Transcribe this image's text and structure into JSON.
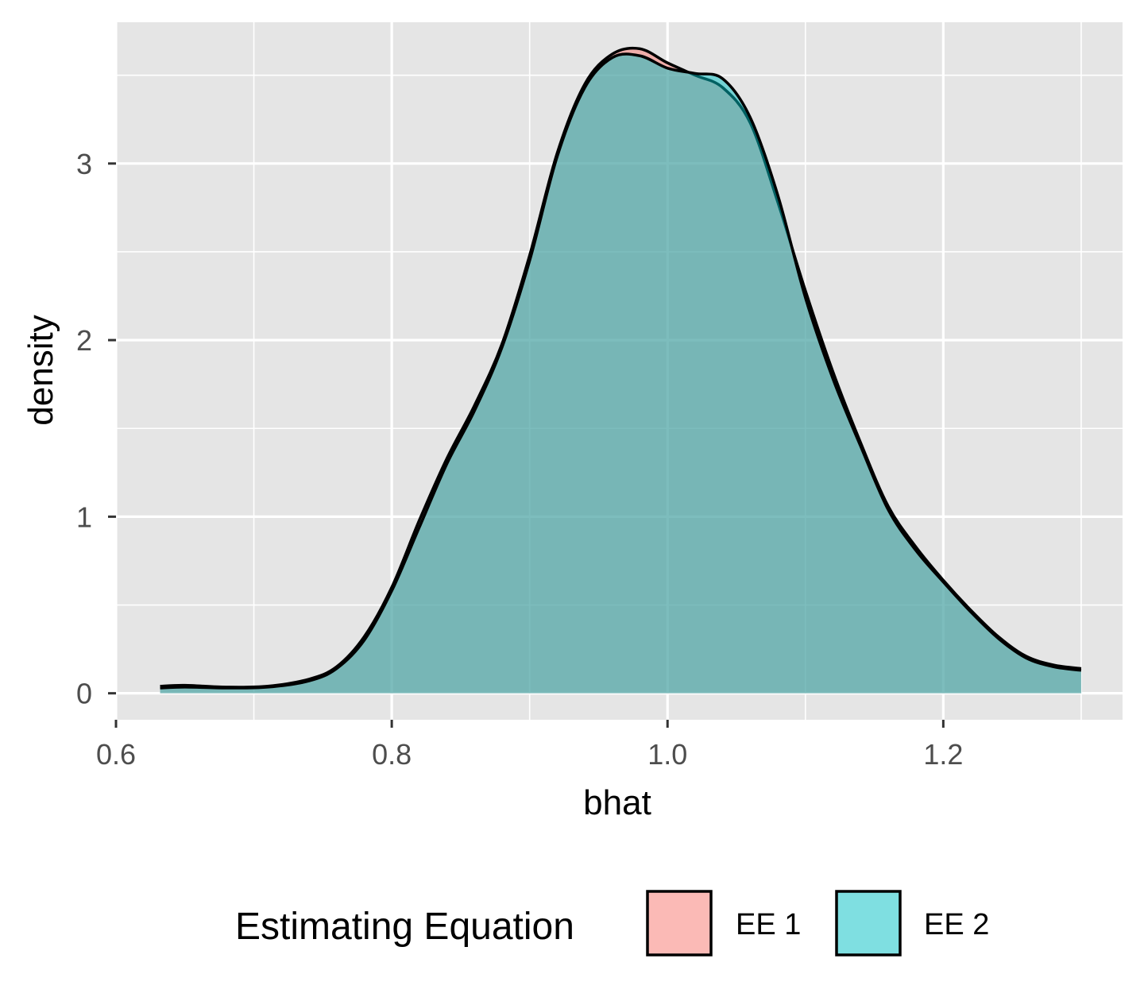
{
  "chart_data": {
    "type": "area",
    "subtype": "density",
    "title": "",
    "xlabel": "bhat",
    "ylabel": "density",
    "xlim": [
      0.6,
      1.33
    ],
    "ylim": [
      -0.15,
      3.8
    ],
    "x_ticks": [
      0.6,
      0.8,
      1.0,
      1.2
    ],
    "x_tick_labels": [
      "0.6",
      "0.8",
      "1.0",
      "1.2"
    ],
    "y_ticks": [
      0,
      1,
      2,
      3
    ],
    "y_tick_labels": [
      "0",
      "1",
      "2",
      "3"
    ],
    "grid": true,
    "legend": {
      "title": "Estimating Equation",
      "position": "bottom"
    },
    "series": [
      {
        "name": "EE 1",
        "color": "#F8766D",
        "points": [
          [
            0.632,
            0.04
          ],
          [
            0.65,
            0.045
          ],
          [
            0.68,
            0.035
          ],
          [
            0.71,
            0.04
          ],
          [
            0.74,
            0.08
          ],
          [
            0.76,
            0.15
          ],
          [
            0.78,
            0.32
          ],
          [
            0.8,
            0.6
          ],
          [
            0.82,
            0.98
          ],
          [
            0.84,
            1.33
          ],
          [
            0.86,
            1.63
          ],
          [
            0.88,
            1.98
          ],
          [
            0.9,
            2.48
          ],
          [
            0.92,
            3.06
          ],
          [
            0.94,
            3.45
          ],
          [
            0.96,
            3.62
          ],
          [
            0.98,
            3.65
          ],
          [
            1.0,
            3.57
          ],
          [
            1.02,
            3.5
          ],
          [
            1.04,
            3.43
          ],
          [
            1.06,
            3.23
          ],
          [
            1.08,
            2.78
          ],
          [
            1.1,
            2.28
          ],
          [
            1.12,
            1.82
          ],
          [
            1.14,
            1.42
          ],
          [
            1.16,
            1.06
          ],
          [
            1.18,
            0.83
          ],
          [
            1.2,
            0.64
          ],
          [
            1.22,
            0.47
          ],
          [
            1.24,
            0.32
          ],
          [
            1.26,
            0.21
          ],
          [
            1.28,
            0.16
          ],
          [
            1.3,
            0.14
          ]
        ]
      },
      {
        "name": "EE 2",
        "color": "#00BFC4",
        "points": [
          [
            0.632,
            0.03
          ],
          [
            0.65,
            0.035
          ],
          [
            0.68,
            0.03
          ],
          [
            0.71,
            0.035
          ],
          [
            0.74,
            0.07
          ],
          [
            0.76,
            0.14
          ],
          [
            0.78,
            0.3
          ],
          [
            0.8,
            0.58
          ],
          [
            0.82,
            0.94
          ],
          [
            0.84,
            1.3
          ],
          [
            0.86,
            1.6
          ],
          [
            0.88,
            1.96
          ],
          [
            0.9,
            2.45
          ],
          [
            0.92,
            3.04
          ],
          [
            0.94,
            3.43
          ],
          [
            0.96,
            3.6
          ],
          [
            0.98,
            3.61
          ],
          [
            1.0,
            3.54
          ],
          [
            1.02,
            3.51
          ],
          [
            1.04,
            3.48
          ],
          [
            1.06,
            3.26
          ],
          [
            1.08,
            2.82
          ],
          [
            1.1,
            2.24
          ],
          [
            1.12,
            1.78
          ],
          [
            1.14,
            1.4
          ],
          [
            1.16,
            1.04
          ],
          [
            1.18,
            0.81
          ],
          [
            1.2,
            0.63
          ],
          [
            1.22,
            0.46
          ],
          [
            1.24,
            0.31
          ],
          [
            1.26,
            0.2
          ],
          [
            1.28,
            0.15
          ],
          [
            1.3,
            0.13
          ]
        ]
      }
    ]
  }
}
